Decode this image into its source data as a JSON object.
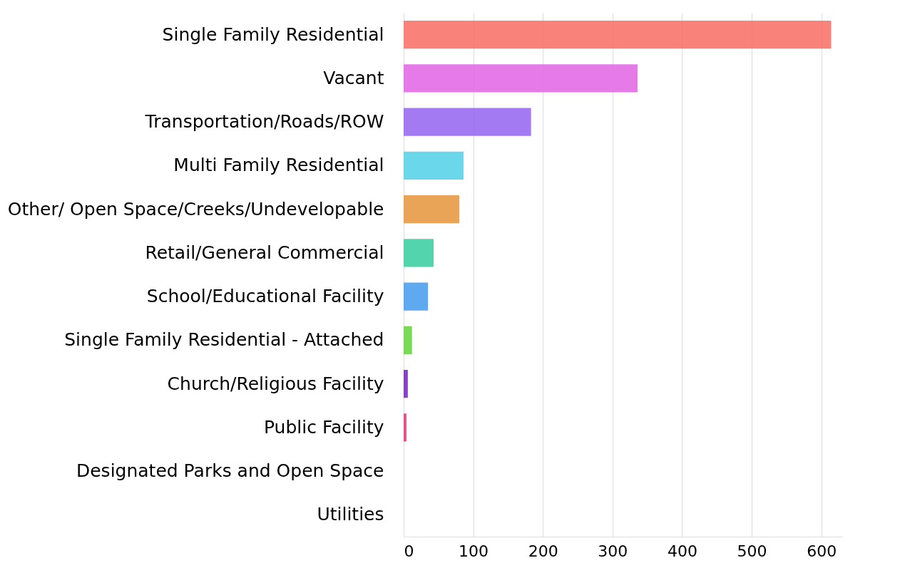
{
  "chart_data": {
    "type": "bar",
    "orientation": "horizontal",
    "categories": [
      "Single Family Residential",
      "Vacant",
      "Transportation/Roads/ROW",
      "Multi Family Residential",
      "Other/ Open Space/Creeks/Undevelopable",
      "Retail/General Commercial",
      "School/Educational Facility",
      "Single Family Residential - Attached",
      "Church/Religious Facility",
      "Public Facility",
      "Designated Parks and Open Space",
      "Utilities"
    ],
    "values": [
      614,
      336,
      183,
      86,
      80,
      43,
      35,
      12,
      6,
      4,
      0,
      0
    ],
    "colors": [
      "#f8766d",
      "#e36be6",
      "#9a6cf2",
      "#5ad3e8",
      "#e89a45",
      "#40cfa4",
      "#4ea0f0",
      "#6cd645",
      "#7a2fc0",
      "#e0407a",
      "#999999",
      "#999999"
    ],
    "xlim": [
      0,
      630
    ],
    "xticks": [
      0,
      100,
      200,
      300,
      400,
      500,
      600
    ],
    "grid": "x"
  }
}
